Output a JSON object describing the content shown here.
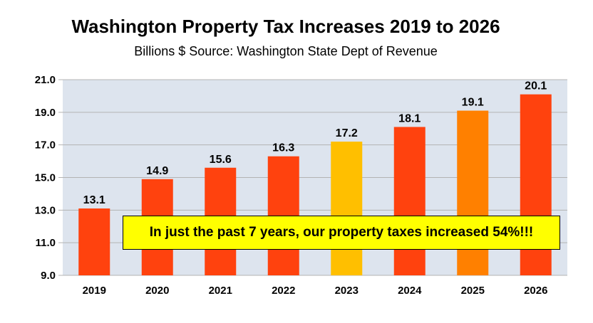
{
  "chart_data": {
    "type": "bar",
    "title": "Washington Property Tax Increases 2019 to 2026",
    "subtitle": "Billions $ Source: Washington State Dept of Revenue",
    "categories": [
      "2019",
      "2020",
      "2021",
      "2022",
      "2023",
      "2024",
      "2025",
      "2026"
    ],
    "values": [
      13.1,
      14.9,
      15.6,
      16.3,
      17.2,
      18.1,
      19.1,
      20.1
    ],
    "data_labels": [
      "13.1",
      "14.9",
      "15.6",
      "16.3",
      "17.2",
      "18.1",
      "19.1",
      "20.1"
    ],
    "bar_colors": [
      "#ff420e",
      "#ff420e",
      "#ff420e",
      "#ff420e",
      "#ffbf00",
      "#ff420e",
      "#ff8000",
      "#ff420e"
    ],
    "ylim": [
      9.0,
      21.0
    ],
    "yticks": [
      "9.0",
      "11.0",
      "13.0",
      "15.0",
      "17.0",
      "19.0",
      "21.0"
    ],
    "grid": true,
    "plot_background": "#dde4ee",
    "annotation": "In just the past 7 years, our property taxes increased 54%!!!"
  }
}
